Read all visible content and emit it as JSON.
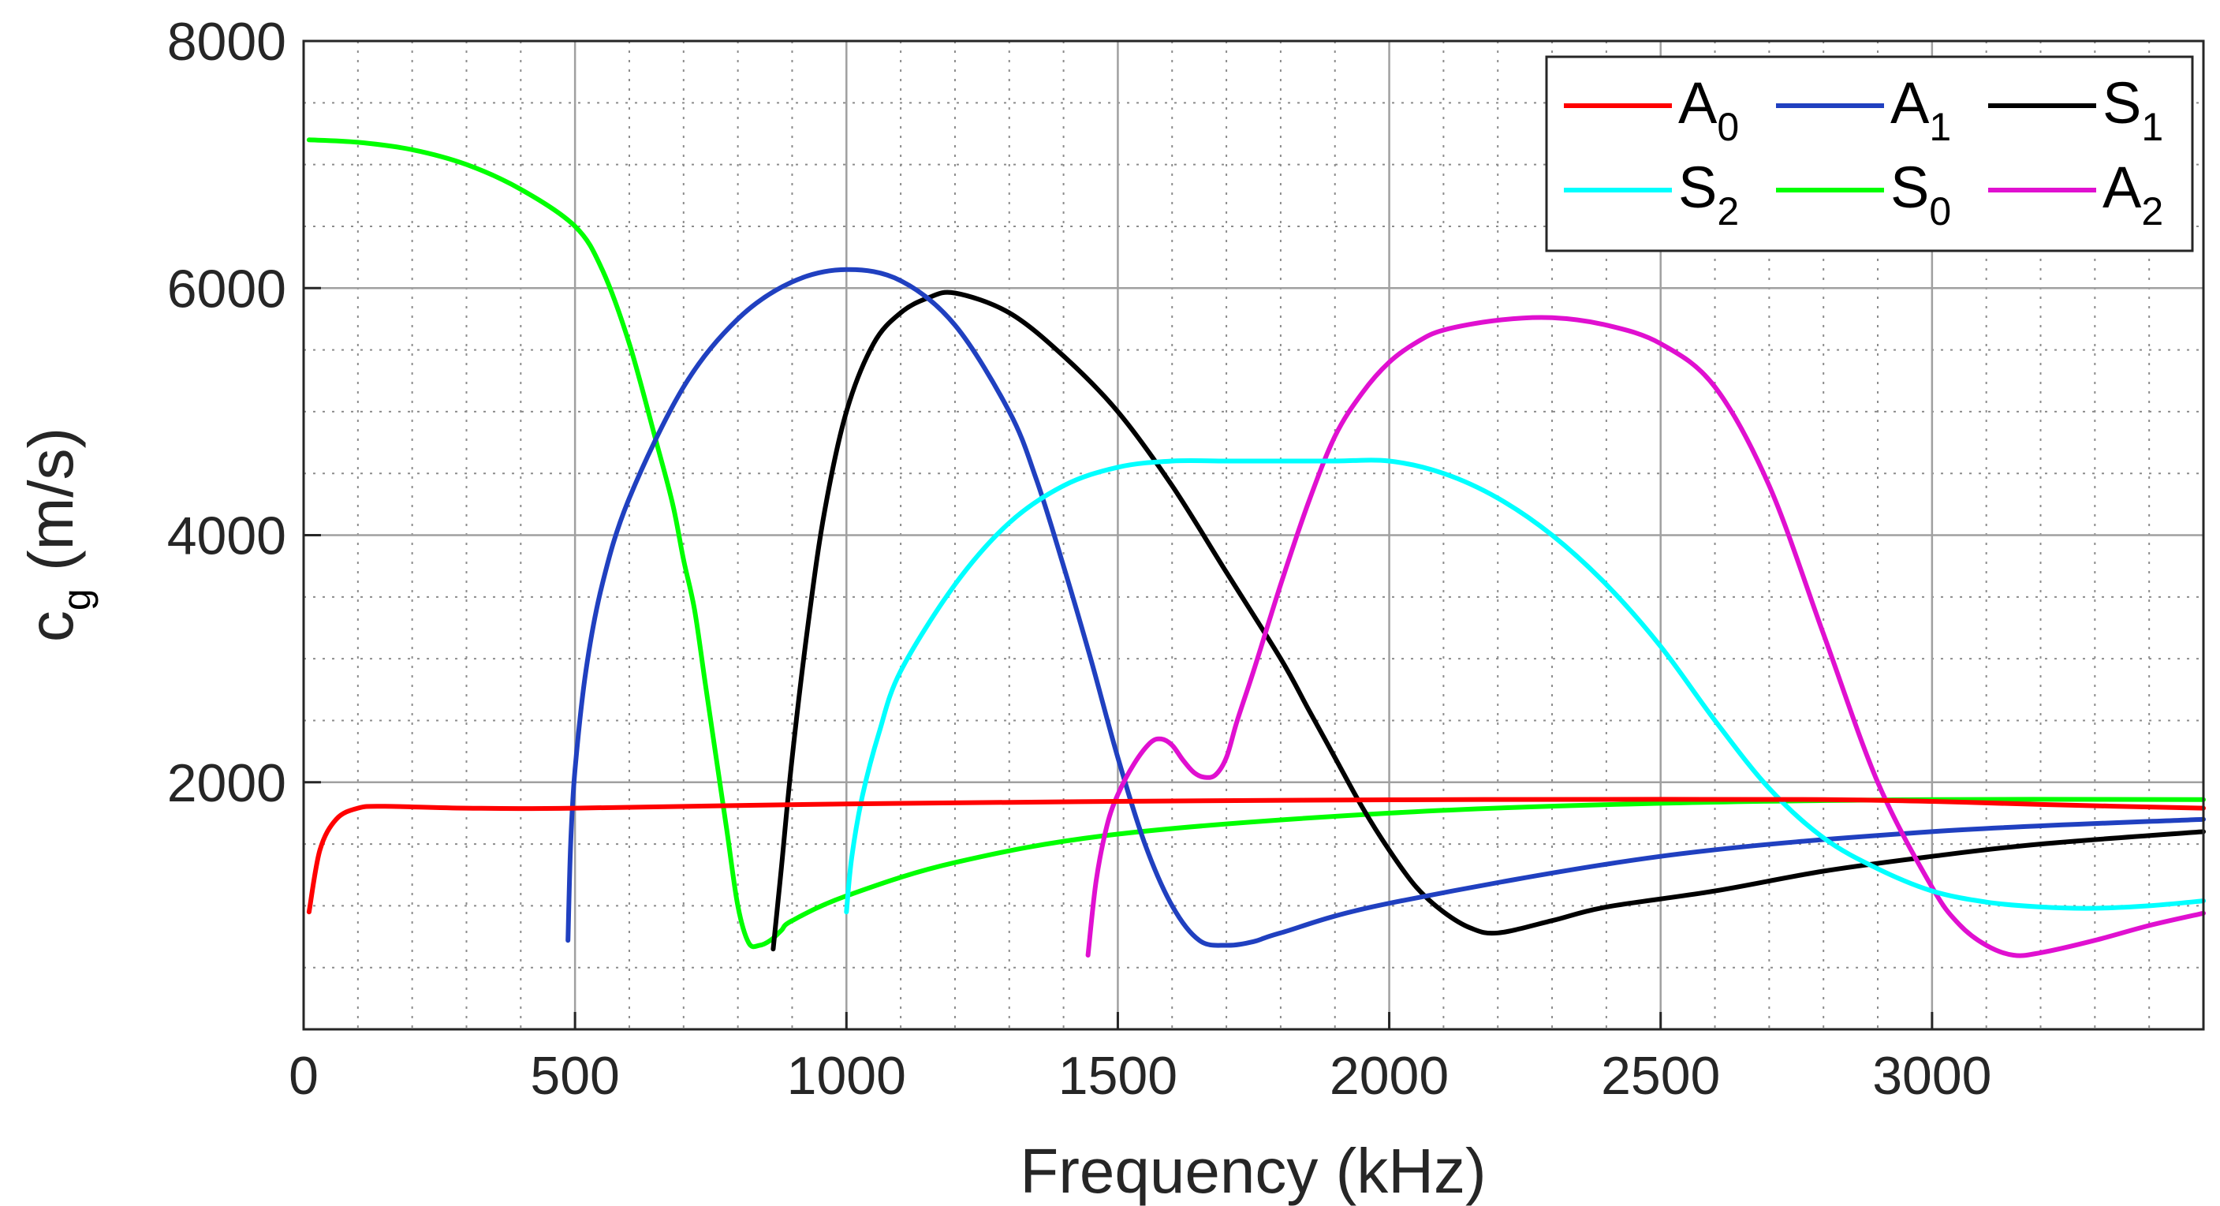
{
  "chart_data": {
    "type": "line",
    "title": "",
    "xlabel": "Frequency (kHz)",
    "ylabel": {
      "main": "c",
      "sub": "g",
      "unit": " (m/s)"
    },
    "xlim": [
      0,
      3500
    ],
    "ylim": [
      0,
      8000
    ],
    "xticks": [
      0,
      500,
      1000,
      1500,
      2000,
      2500,
      3000
    ],
    "yticks": [
      2000,
      4000,
      6000,
      8000
    ],
    "xtick_labels": [
      "0",
      "500",
      "1000",
      "1500",
      "2000",
      "2500",
      "3000"
    ],
    "ytick_labels": [
      "2000",
      "4000",
      "6000",
      "8000"
    ],
    "grid": true,
    "minor_grid": true,
    "legend_position": "top-right",
    "series": [
      {
        "name": "A",
        "sub": "0",
        "color": "#ff0000",
        "x": [
          10,
          30,
          60,
          100,
          150,
          300,
          500,
          1000,
          1500,
          2000,
          2500,
          2800,
          3000,
          3200,
          3500
        ],
        "y": [
          950,
          1450,
          1700,
          1790,
          1805,
          1790,
          1790,
          1825,
          1845,
          1858,
          1862,
          1860,
          1845,
          1820,
          1790
        ]
      },
      {
        "name": "S",
        "sub": "0",
        "color": "#00ff00",
        "x": [
          10,
          100,
          200,
          300,
          400,
          500,
          550,
          600,
          650,
          680,
          700,
          720,
          740,
          760,
          780,
          800,
          820,
          840,
          860,
          880,
          900,
          1000,
          1200,
          1500,
          2000,
          2500,
          3000,
          3500
        ],
        "y": [
          7200,
          7180,
          7120,
          7000,
          6800,
          6500,
          6150,
          5550,
          4750,
          4250,
          3800,
          3400,
          2800,
          2200,
          1600,
          1000,
          700,
          680,
          720,
          800,
          880,
          1080,
          1350,
          1580,
          1750,
          1830,
          1860,
          1860
        ]
      },
      {
        "name": "A",
        "sub": "1",
        "color": "#2040c0",
        "x": [
          487,
          492,
          500,
          520,
          550,
          600,
          700,
          800,
          900,
          1000,
          1100,
          1200,
          1300,
          1350,
          1400,
          1450,
          1500,
          1550,
          1600,
          1650,
          1700,
          1750,
          1800,
          2000,
          2500,
          3000,
          3500
        ],
        "y": [
          720,
          1500,
          2100,
          2900,
          3600,
          4300,
          5200,
          5750,
          6050,
          6150,
          6060,
          5700,
          5000,
          4450,
          3750,
          3000,
          2200,
          1500,
          1000,
          720,
          680,
          710,
          780,
          1020,
          1400,
          1600,
          1700
        ]
      },
      {
        "name": "S",
        "sub": "2",
        "color": "#00ffff",
        "x": [
          1000,
          1010,
          1030,
          1060,
          1100,
          1200,
          1300,
          1400,
          1500,
          1600,
          1700,
          1800,
          1900,
          2000,
          2100,
          2200,
          2300,
          2400,
          2500,
          2600,
          2700,
          2800,
          2900,
          3000,
          3100,
          3200,
          3300,
          3400,
          3500
        ],
        "y": [
          950,
          1400,
          1900,
          2400,
          2900,
          3600,
          4100,
          4400,
          4550,
          4600,
          4600,
          4600,
          4600,
          4600,
          4500,
          4300,
          4000,
          3600,
          3100,
          2500,
          1950,
          1550,
          1300,
          1120,
          1030,
          990,
          980,
          1000,
          1040
        ]
      },
      {
        "name": "S",
        "sub": "1",
        "color": "#000000",
        "x": [
          865,
          880,
          900,
          930,
          960,
          1000,
          1050,
          1100,
          1150,
          1200,
          1300,
          1400,
          1500,
          1600,
          1700,
          1800,
          1850,
          1900,
          1950,
          2000,
          2050,
          2100,
          2150,
          2200,
          2300,
          2400,
          2600,
          2800,
          3000,
          3200,
          3500
        ],
        "y": [
          650,
          1300,
          2200,
          3300,
          4200,
          5000,
          5550,
          5800,
          5920,
          5960,
          5800,
          5450,
          5000,
          4400,
          3700,
          3000,
          2600,
          2200,
          1800,
          1450,
          1150,
          950,
          820,
          780,
          880,
          990,
          1120,
          1280,
          1400,
          1500,
          1600
        ]
      },
      {
        "name": "A",
        "sub": "2",
        "color": "#e010d0",
        "x": [
          1445,
          1460,
          1480,
          1500,
          1530,
          1560,
          1580,
          1600,
          1620,
          1640,
          1660,
          1680,
          1700,
          1720,
          1750,
          1800,
          1850,
          1900,
          1950,
          2000,
          2050,
          2100,
          2200,
          2300,
          2400,
          2500,
          2600,
          2700,
          2800,
          2900,
          3000,
          3050,
          3100,
          3150,
          3200,
          3300,
          3400,
          3500
        ],
        "y": [
          600,
          1200,
          1650,
          1900,
          2150,
          2320,
          2350,
          2300,
          2180,
          2080,
          2040,
          2060,
          2200,
          2500,
          2900,
          3600,
          4250,
          4800,
          5150,
          5400,
          5560,
          5660,
          5740,
          5760,
          5700,
          5550,
          5200,
          4400,
          3200,
          2000,
          1150,
          850,
          680,
          600,
          620,
          720,
          840,
          940
        ]
      }
    ],
    "legend_order": [
      0,
      3,
      2,
      1,
      4,
      5
    ]
  }
}
